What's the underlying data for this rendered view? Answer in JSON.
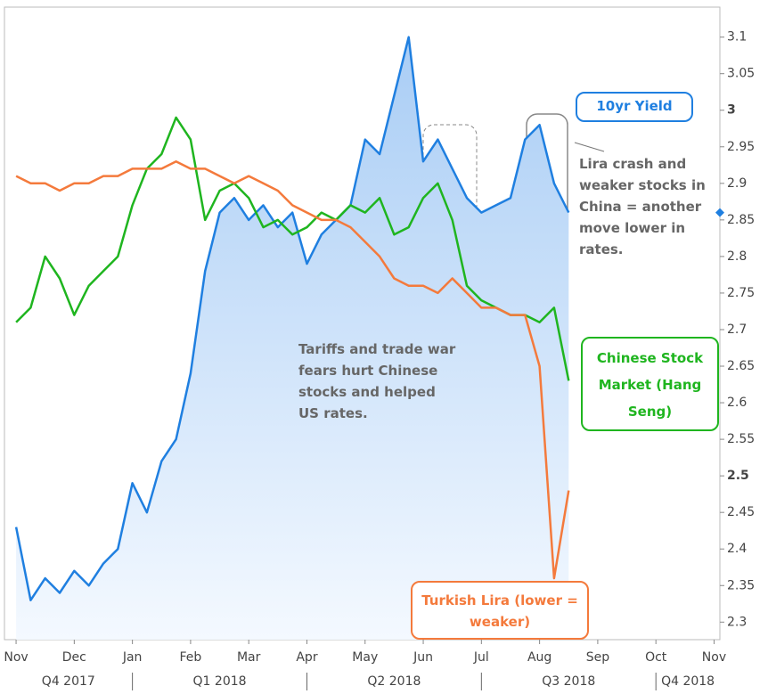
{
  "chart_data": {
    "type": "line",
    "x": [
      0,
      0.25,
      0.5,
      0.75,
      1,
      1.25,
      1.5,
      1.75,
      2,
      2.25,
      2.5,
      2.75,
      3,
      3.25,
      3.5,
      3.75,
      4,
      4.25,
      4.5,
      4.75,
      5,
      5.25,
      5.5,
      5.75,
      6,
      6.25,
      6.5,
      6.75,
      7,
      7.25,
      7.5,
      7.75,
      8,
      8.25,
      8.5,
      8.75,
      9,
      9.25,
      9.5
    ],
    "xlim": [
      -0.2,
      12.1
    ],
    "xticks": [
      {
        "value": 0,
        "label": "Nov"
      },
      {
        "value": 1,
        "label": "Dec"
      },
      {
        "value": 2,
        "label": "Jan"
      },
      {
        "value": 3,
        "label": "Feb"
      },
      {
        "value": 4,
        "label": "Mar"
      },
      {
        "value": 5,
        "label": "Apr"
      },
      {
        "value": 6,
        "label": "May"
      },
      {
        "value": 7,
        "label": "Jun"
      },
      {
        "value": 8,
        "label": "Jul"
      },
      {
        "value": 9,
        "label": "Aug"
      },
      {
        "value": 10,
        "label": "Sep"
      },
      {
        "value": 11,
        "label": "Oct"
      },
      {
        "value": 12,
        "label": "Nov"
      }
    ],
    "quarters": [
      "Q4 2017",
      "Q1 2018",
      "Q2 2018",
      "Q3 2018",
      "Q4 2018"
    ],
    "ylim": [
      2.276,
      3.141
    ],
    "yticks": [
      3.1,
      3.05,
      3,
      2.95,
      2.9,
      2.85,
      2.8,
      2.75,
      2.7,
      2.65,
      2.6,
      2.55,
      2.5,
      2.45,
      2.4,
      2.35,
      2.3
    ],
    "series": [
      {
        "name": "10yr Yield",
        "color": "#1f7fe0",
        "area": true,
        "values": [
          2.43,
          2.33,
          2.36,
          2.34,
          2.37,
          2.35,
          2.38,
          2.4,
          2.49,
          2.45,
          2.52,
          2.55,
          2.64,
          2.78,
          2.86,
          2.88,
          2.85,
          2.87,
          2.84,
          2.86,
          2.79,
          2.83,
          2.85,
          2.87,
          2.96,
          2.94,
          3.02,
          3.1,
          2.93,
          2.96,
          2.92,
          2.88,
          2.86,
          2.87,
          2.88,
          2.96,
          2.98,
          2.9,
          2.86
        ]
      },
      {
        "name": "Chinese Stock Market (Hang Seng)",
        "color": "#1fb51f",
        "values": [
          2.71,
          2.73,
          2.8,
          2.77,
          2.72,
          2.76,
          2.78,
          2.8,
          2.87,
          2.92,
          2.94,
          2.99,
          2.96,
          2.85,
          2.89,
          2.9,
          2.88,
          2.84,
          2.85,
          2.83,
          2.84,
          2.86,
          2.85,
          2.87,
          2.86,
          2.88,
          2.83,
          2.84,
          2.88,
          2.9,
          2.85,
          2.76,
          2.74,
          2.73,
          2.72,
          2.72,
          2.71,
          2.73,
          2.63
        ]
      },
      {
        "name": "Turkish Lira (lower = weaker)",
        "color": "#f47a3c",
        "values": [
          2.91,
          2.9,
          2.9,
          2.89,
          2.9,
          2.9,
          2.91,
          2.91,
          2.92,
          2.92,
          2.92,
          2.93,
          2.92,
          2.92,
          2.91,
          2.9,
          2.91,
          2.9,
          2.89,
          2.87,
          2.86,
          2.85,
          2.85,
          2.84,
          2.82,
          2.8,
          2.77,
          2.76,
          2.76,
          2.75,
          2.77,
          2.75,
          2.73,
          2.73,
          2.72,
          2.72,
          2.65,
          2.36,
          2.48
        ]
      }
    ],
    "annotations": [
      "Lira crash and weaker stocks in China = another move lower in rates.",
      "Tariffs and trade war fears hurt Chinese stocks and helped US rates."
    ]
  }
}
